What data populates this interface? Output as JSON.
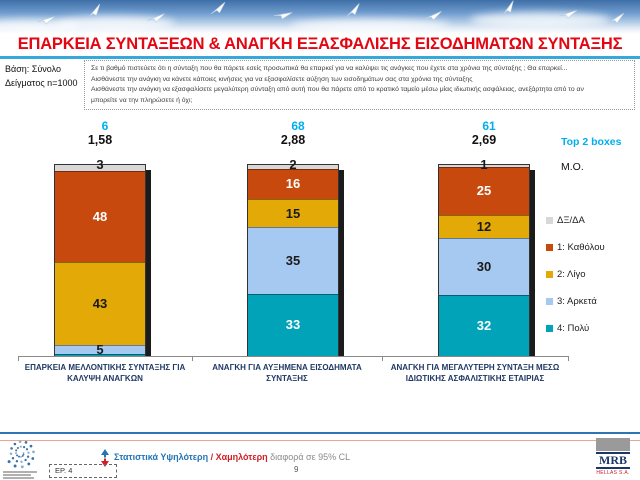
{
  "slide": {
    "title": "ΕΠΑΡΚΕΙΑ ΣΥΝΤΑΞΕΩΝ & ΑΝΑΓΚΗ ΕΞΑΣΦΑΛΙΣΗΣ ΕΙΣΟΔΗΜΑΤΩΝ ΣΥΝΤΑΞΗΣ",
    "base_note_line1": "Βάση: Σύνολο",
    "base_note_line2": "Δείγματος n=1000",
    "question_lines": [
      "Σε τι βαθμό πιστεύετε ότι η σύνταξη που θα πάρετε εσείς προσωπικά θα επαρκεί για να καλύψει τις ανάγκες που έχετε στα χρόνια της σύνταξης ; Θα επαρκεί...",
      "Αισθάνεστε την ανάγκη να κάνετε κάποιες κινήσεις για να εξασφαλίσετε αύξηση των εισοδημάτων σας στα χρόνια της σύνταξης",
      "Αισθάνεστε την ανάγκη να εξασφαλίσετε μεγαλύτερη σύνταξη από αυτή που θα πάρετε από το κρατικό ταμείο μέσω μίας ιδιωτικής ασφάλειας, ανεξάρτητα από το αν",
      "μπορείτε να την πληρώσετε ή όχι;"
    ],
    "page_number": "9"
  },
  "chart_data": {
    "type": "bar",
    "stacked": true,
    "orientation": "vertical",
    "ylim": [
      0,
      100
    ],
    "grid": false,
    "legend_position": "right",
    "top2_header": "Top 2 boxes",
    "mean_header": "Μ.Ο.",
    "categories": [
      "ΕΠΑΡΚΕΙΑ ΜΕΛΛΟΝΤΙΚΗΣ ΣΥΝΤΑΞΗΣ ΓΙΑ ΚΑΛΥΨΗ ΑΝΑΓΚΩΝ",
      "ΑΝΑΓΚΗ ΓΙΑ ΑΥΞΗΜΕΝΑ ΕΙΣΟΔΗΜΑΤΑ ΣΥΝΤΑΞΗΣ",
      "ΑΝΑΓΚΗ ΓΙΑ ΜΕΓΑΛΥΤΕΡΗ ΣΥΝΤΑΞΗ ΜΕΣΩ ΙΔΙΩΤΙΚΗΣ ΑΣΦΑΛΙΣΤΙΚΗΣ ΕΤΑΙΡΙΑΣ"
    ],
    "series": [
      {
        "name": "ΔΞ/ΔΑ",
        "color": "#D8D8D8",
        "text_color": "#1a1a1a",
        "values": [
          3,
          2,
          1
        ],
        "labels": [
          "3",
          "2",
          "1"
        ]
      },
      {
        "name": "1: Καθόλου",
        "color": "#C7490E",
        "text_color": "#ffffff",
        "values": [
          48,
          16,
          25
        ],
        "labels": [
          "48",
          "16",
          "25"
        ]
      },
      {
        "name": "2: Λίγο",
        "color": "#E2A907",
        "text_color": "#1a1a1a",
        "values": [
          43,
          15,
          12
        ],
        "labels": [
          "43",
          "15",
          "12"
        ]
      },
      {
        "name": "3: Αρκετά",
        "color": "#A6C9F2",
        "text_color": "#1a1a1a",
        "values": [
          5,
          35,
          30
        ],
        "labels": [
          "5",
          "35",
          "30"
        ]
      },
      {
        "name": "4: Πολύ",
        "color": "#00A3B8",
        "text_color": "#ffffff",
        "values": [
          1,
          33,
          32
        ],
        "labels": [
          "",
          "33",
          "32"
        ]
      }
    ],
    "top2_boxes": [
      "6",
      "68",
      "61"
    ],
    "means": [
      "1,58",
      "2,88",
      "2,69"
    ]
  },
  "footer": {
    "significance_high": "Στατιστικά Υψηλότερη",
    "significance_sep": " / ",
    "significance_low": "Χαμηλότερη",
    "significance_rest": " διαφορά σε 95% CL",
    "question_ref": "ΕΡ. 4",
    "logo_text": "MRB",
    "logo_subtext": "HELLAS S.A."
  },
  "colors": {
    "title_red": "#E30613",
    "accent_cyan": "#00AEEF",
    "underline_blue": "#35A8DC",
    "footer_blue": "#2574B5",
    "footer_red": "#D02028"
  }
}
